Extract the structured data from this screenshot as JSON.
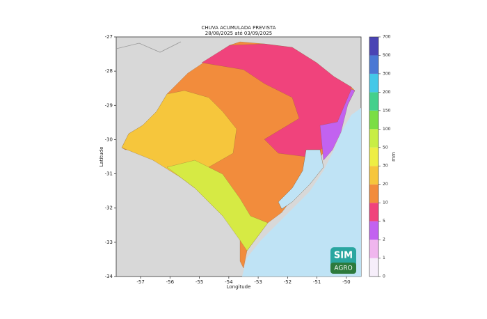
{
  "title": "CHUVA ACUMULADA PREVISTA",
  "subtitle": "28/08/2025 até 03/09/2025",
  "map": {
    "xlabel": "Longitude",
    "ylabel": "Latitude",
    "xlim": [
      -57.83,
      -49.5
    ],
    "ylim": [
      -34,
      -27
    ],
    "xticks": [
      -57,
      -56,
      -55,
      -54,
      -53,
      -52,
      -51,
      -50
    ],
    "yticks": [
      -27,
      -28,
      -29,
      -30,
      -31,
      -32,
      -33,
      -34
    ]
  },
  "colorbar": {
    "unit": "mm",
    "levels": [
      0,
      1,
      2,
      5,
      10,
      20,
      30,
      50,
      100,
      150,
      200,
      300,
      500,
      700
    ],
    "colors": [
      "#f6eefa",
      "#f0b6ee",
      "#c262f0",
      "#f0437c",
      "#f28c3c",
      "#f6c63c",
      "#eeee44",
      "#c8ee44",
      "#7ade44",
      "#44d08c",
      "#44c8e8",
      "#4a78d4",
      "#4a44b4"
    ]
  },
  "logo": {
    "top": "SIM",
    "bottom": "AGRO"
  }
}
